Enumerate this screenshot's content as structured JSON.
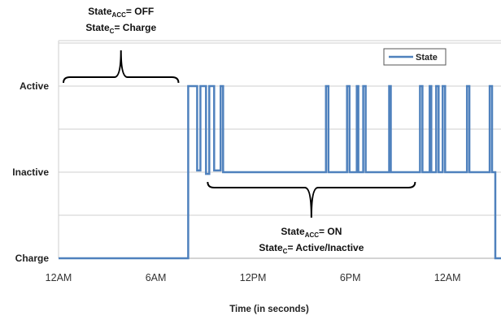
{
  "chart_data": {
    "type": "line",
    "title": "",
    "xlabel": "Time (in seconds)",
    "ylabel": "",
    "x_ticks": [
      "12AM",
      "6AM",
      "12PM",
      "6PM",
      "12AM"
    ],
    "xlim_hours": [
      0,
      27.3
    ],
    "y_levels": [
      "Charge",
      "Inactive",
      "Active"
    ],
    "ylim": [
      0,
      2
    ],
    "grid": true,
    "legend": {
      "position": "top-right",
      "entries": [
        "State"
      ]
    },
    "series": [
      {
        "name": "State",
        "color": "#4f81bd",
        "points": [
          [
            0.0,
            0
          ],
          [
            8.0,
            0
          ],
          [
            8.0,
            2
          ],
          [
            8.55,
            2
          ],
          [
            8.55,
            1.02
          ],
          [
            8.75,
            1.02
          ],
          [
            8.75,
            2
          ],
          [
            9.1,
            2
          ],
          [
            9.1,
            0.98
          ],
          [
            9.3,
            0.98
          ],
          [
            9.3,
            2
          ],
          [
            9.6,
            2
          ],
          [
            9.6,
            1.02
          ],
          [
            10.0,
            1.02
          ],
          [
            10.0,
            2
          ],
          [
            10.15,
            2
          ],
          [
            10.15,
            1.0
          ],
          [
            16.5,
            1.0
          ],
          [
            16.5,
            2
          ],
          [
            16.65,
            2
          ],
          [
            16.65,
            1.0
          ],
          [
            17.8,
            1.0
          ],
          [
            17.8,
            2
          ],
          [
            17.95,
            2
          ],
          [
            17.95,
            1.0
          ],
          [
            18.4,
            1.0
          ],
          [
            18.4,
            2
          ],
          [
            18.5,
            2
          ],
          [
            18.5,
            1.0
          ],
          [
            18.8,
            1.0
          ],
          [
            18.8,
            2
          ],
          [
            18.95,
            2
          ],
          [
            18.95,
            1.0
          ],
          [
            20.4,
            1.0
          ],
          [
            20.4,
            2
          ],
          [
            20.5,
            2
          ],
          [
            20.5,
            1.0
          ],
          [
            22.3,
            1.0
          ],
          [
            22.3,
            2
          ],
          [
            22.45,
            2
          ],
          [
            22.45,
            1.0
          ],
          [
            22.9,
            1.0
          ],
          [
            22.9,
            2
          ],
          [
            23.0,
            2
          ],
          [
            23.0,
            1.0
          ],
          [
            23.3,
            1.0
          ],
          [
            23.3,
            2
          ],
          [
            23.45,
            2
          ],
          [
            23.45,
            1.0
          ],
          [
            23.7,
            1.0
          ],
          [
            23.7,
            2
          ],
          [
            23.85,
            2
          ],
          [
            23.85,
            1.0
          ],
          [
            25.2,
            1.0
          ],
          [
            25.2,
            2
          ],
          [
            25.35,
            2
          ],
          [
            25.35,
            1.0
          ],
          [
            26.6,
            1.0
          ],
          [
            26.6,
            2
          ],
          [
            26.75,
            2
          ],
          [
            26.75,
            1.0
          ],
          [
            26.95,
            1.0
          ],
          [
            26.95,
            0
          ],
          [
            27.3,
            0
          ]
        ]
      }
    ],
    "annotations": [
      {
        "span_hours": [
          0,
          7.4
        ],
        "brace": "top",
        "lines": [
          {
            "pre": "State",
            "sub": "ACC",
            "post": "= OFF"
          },
          {
            "pre": "State",
            "sub": "C",
            "post": "= Charge"
          }
        ]
      },
      {
        "span_hours": [
          8.9,
          22.0
        ],
        "brace": "bottom",
        "lines": [
          {
            "pre": "State",
            "sub": "ACC",
            "post": "= ON"
          },
          {
            "pre": "State",
            "sub": "C",
            "post": "= Active/Inactive"
          }
        ]
      }
    ]
  }
}
